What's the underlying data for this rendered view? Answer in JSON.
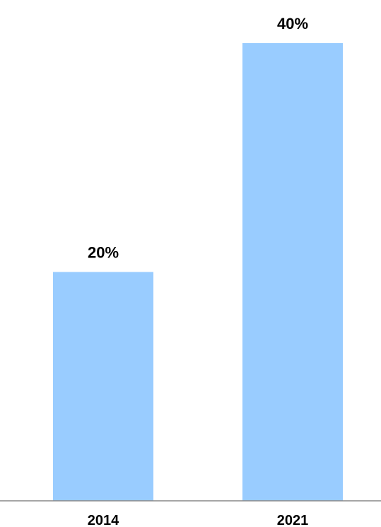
{
  "chart_data": {
    "type": "bar",
    "categories": [
      "2014",
      "2021"
    ],
    "values": [
      20,
      40
    ],
    "data_labels": [
      "20%",
      "40%"
    ],
    "title": "",
    "xlabel": "",
    "ylabel": "",
    "ylim": [
      0,
      40
    ],
    "grid": false,
    "legend": "none",
    "bar_color": "#99ccff",
    "axis_color": "#888888"
  }
}
